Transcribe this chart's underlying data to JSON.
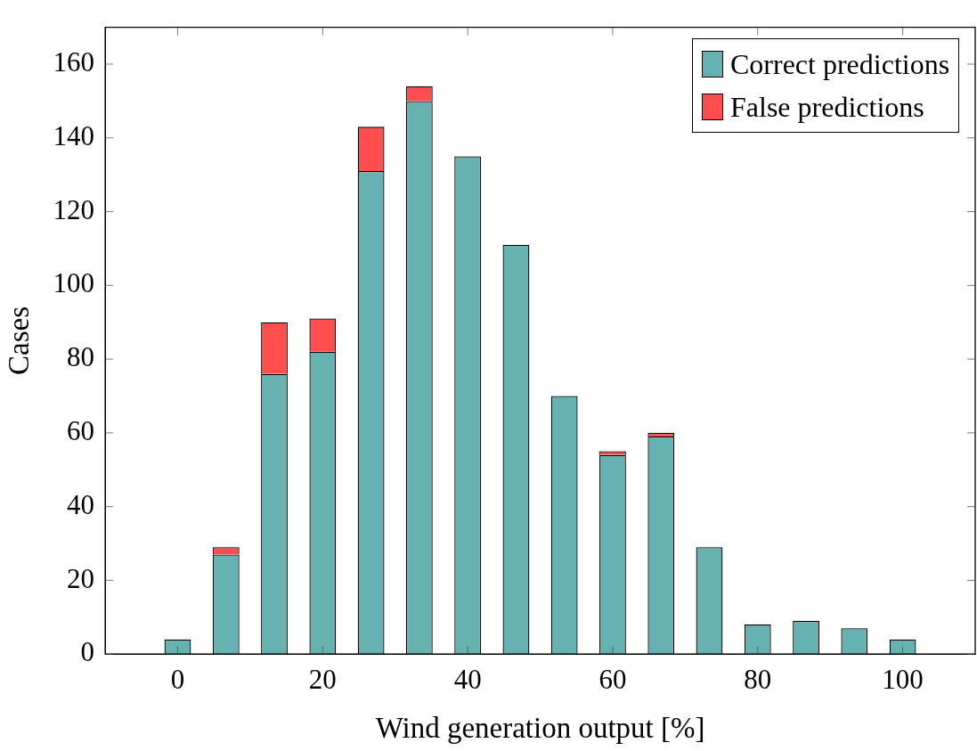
{
  "chart_data": {
    "type": "bar",
    "stacked": true,
    "xlabel": "Wind generation output [%]",
    "ylabel": "Cases",
    "x": [
      0,
      6.67,
      13.33,
      20,
      26.67,
      33.33,
      40,
      46.67,
      53.33,
      60,
      66.67,
      73.33,
      80,
      86.67,
      93.33,
      100
    ],
    "series": [
      {
        "name": "Correct predictions",
        "color": "#66b2b2",
        "values": [
          4,
          27,
          76,
          82,
          131,
          150,
          135,
          111,
          70,
          54,
          59,
          29,
          8,
          9,
          7,
          4
        ]
      },
      {
        "name": "False predictions",
        "color": "#ff4c4c",
        "values": [
          0,
          2,
          14,
          9,
          12,
          4,
          0,
          0,
          0,
          1,
          1,
          0,
          0,
          0,
          0,
          0
        ]
      }
    ],
    "xlim": [
      -10,
      110
    ],
    "xticks": [
      0,
      20,
      40,
      60,
      80,
      100
    ],
    "ylim": [
      0,
      170
    ],
    "yticks": [
      0,
      20,
      40,
      60,
      80,
      100,
      120,
      140,
      160
    ],
    "grid": false,
    "legend": "top right"
  }
}
